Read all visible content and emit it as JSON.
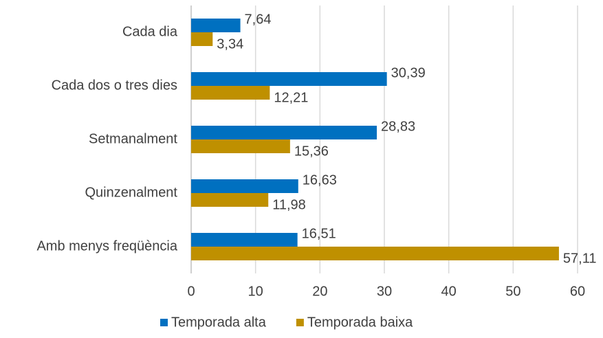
{
  "chart_data": {
    "type": "hbar",
    "categories": [
      "Cada dia",
      "Cada dos o tres dies",
      "Setmanalment",
      "Quinzenalment",
      "Amb menys freqüència"
    ],
    "series": [
      {
        "name": "Temporada alta",
        "color": "#0070c0",
        "values": [
          7.64,
          30.39,
          28.83,
          16.63,
          16.51
        ],
        "value_labels": [
          "7,64",
          "30,39",
          "28,83",
          "16,63",
          "16,51"
        ]
      },
      {
        "name": "Temporada baixa",
        "color": "#bf9000",
        "values": [
          3.34,
          12.21,
          15.36,
          11.98,
          57.11
        ],
        "value_labels": [
          "3,34",
          "12,21",
          "15,36",
          "11,98",
          "57,11"
        ]
      }
    ],
    "xlim": [
      0,
      60
    ],
    "xticks": [
      0,
      10,
      20,
      30,
      40,
      50,
      60
    ],
    "grid": true,
    "legend": "bottom"
  }
}
